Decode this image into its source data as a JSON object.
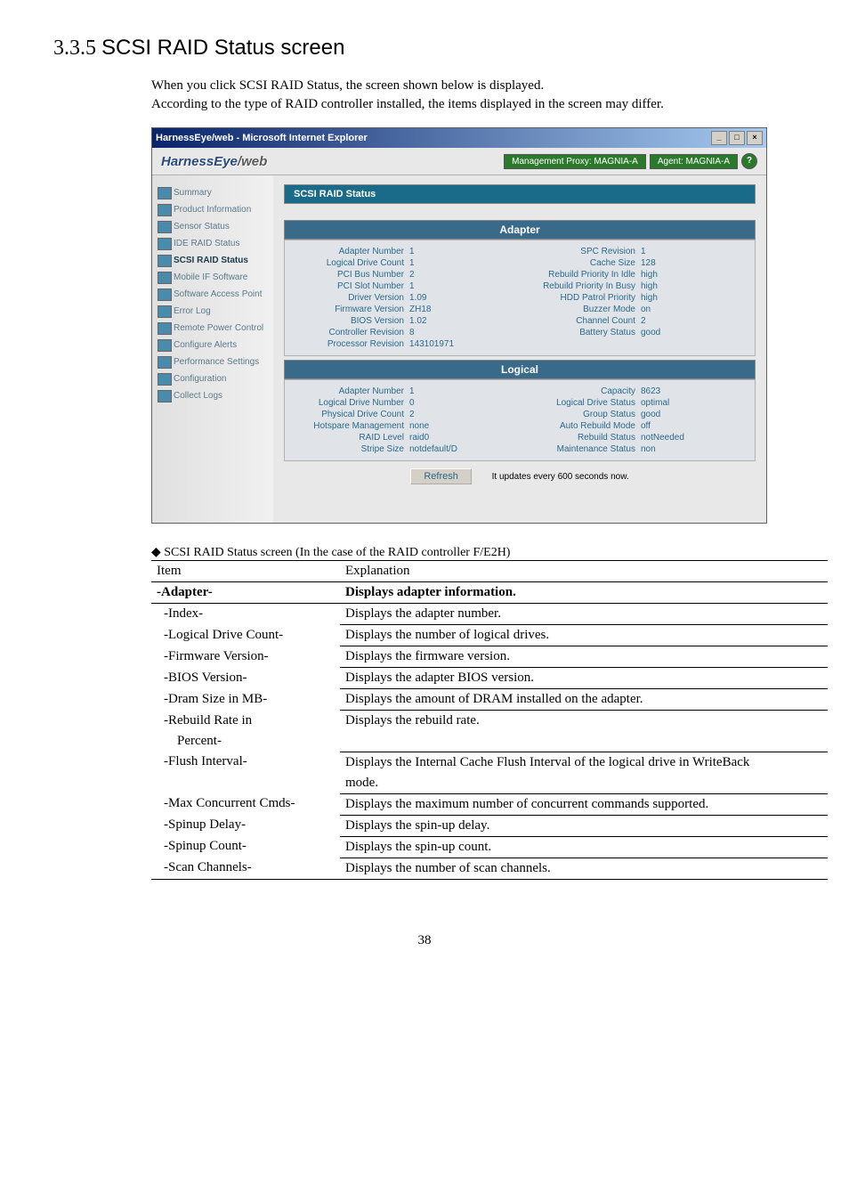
{
  "heading": {
    "num": "3.3.5",
    "title": "SCSI RAID Status screen"
  },
  "intro": [
    "When you click SCSI RAID Status, the screen shown below is displayed.",
    "According to the type of RAID controller installed, the items displayed in the screen may differ."
  ],
  "window": {
    "title": "HarnessEye/web - Microsoft Internet Explorer",
    "logo_a": "HarnessEye",
    "logo_b": "/web",
    "logo_color_a": "#2a4a7a",
    "logo_color_b": "#5a5a5a",
    "proxy_label": "Management Proxy: MAGNIA-A",
    "agent_label": "Agent: MAGNIA-A",
    "help": "?"
  },
  "sidebar": [
    {
      "label": "Summary"
    },
    {
      "label": "Product Information"
    },
    {
      "label": "Sensor Status"
    },
    {
      "label": "IDE RAID Status"
    },
    {
      "label": "SCSI RAID Status",
      "active": true
    },
    {
      "label": "Mobile IF Software"
    },
    {
      "label": "Software Access Point"
    },
    {
      "label": "Error Log"
    },
    {
      "label": "Remote Power Control"
    },
    {
      "label": "Configure Alerts"
    },
    {
      "label": "Performance Settings"
    },
    {
      "label": "Configuration"
    },
    {
      "label": "Collect Logs"
    }
  ],
  "status_title": "SCSI RAID Status",
  "adapter": {
    "header": "Adapter",
    "left": [
      {
        "k": "Adapter Number",
        "v": "1"
      },
      {
        "k": "Logical Drive Count",
        "v": "1"
      },
      {
        "k": "PCI Bus Number",
        "v": "2"
      },
      {
        "k": "PCI Slot Number",
        "v": "1"
      },
      {
        "k": "Driver Version",
        "v": "1.09"
      },
      {
        "k": "Firmware Version",
        "v": "ZH18"
      },
      {
        "k": "BIOS Version",
        "v": "1.02"
      },
      {
        "k": "Controller Revision",
        "v": "8"
      },
      {
        "k": "Processor Revision",
        "v": "143101971"
      }
    ],
    "right": [
      {
        "k": "SPC Revision",
        "v": "1"
      },
      {
        "k": "Cache Size",
        "v": "128"
      },
      {
        "k": "Rebuild Priority In Idle",
        "v": "high"
      },
      {
        "k": "Rebuild Priority In Busy",
        "v": "high"
      },
      {
        "k": "HDD Patrol Priority",
        "v": "high"
      },
      {
        "k": "Buzzer Mode",
        "v": "on"
      },
      {
        "k": "Channel Count",
        "v": "2"
      },
      {
        "k": "Battery Status",
        "v": "good"
      }
    ]
  },
  "logical": {
    "header": "Logical",
    "left": [
      {
        "k": "Adapter Number",
        "v": "1"
      },
      {
        "k": "Logical Drive Number",
        "v": "0"
      },
      {
        "k": "Physical Drive Count",
        "v": "2"
      },
      {
        "k": "Hotspare Management",
        "v": "none"
      },
      {
        "k": "RAID Level",
        "v": "raid0"
      },
      {
        "k": "Stripe Size",
        "v": "notdefault/D"
      }
    ],
    "right": [
      {
        "k": "Capacity",
        "v": "8623"
      },
      {
        "k": "Logical Drive Status",
        "v": "optimal"
      },
      {
        "k": "Group Status",
        "v": "good"
      },
      {
        "k": "Auto Rebuild Mode",
        "v": "off"
      },
      {
        "k": "Rebuild Status",
        "v": "notNeeded"
      },
      {
        "k": "Maintenance Status",
        "v": "non"
      }
    ]
  },
  "refresh": {
    "btn": "Refresh",
    "note": "It updates every 600 seconds now."
  },
  "caption": "◆ SCSI RAID Status screen (In the case of the RAID controller F/E2H)",
  "thead": {
    "c1": "Item",
    "c2": "Explanation"
  },
  "grp": {
    "c1": "-Adapter-",
    "c2": "Displays adapter information."
  },
  "rows": [
    {
      "i": "-Index-",
      "e": "Displays the adapter number."
    },
    {
      "i": "-Logical Drive Count-",
      "e": "Displays the number of logical drives."
    },
    {
      "i": "-Firmware Version-",
      "e": "Displays the firmware version."
    },
    {
      "i": "-BIOS Version-",
      "e": "Displays the adapter BIOS version."
    },
    {
      "i": "-Dram Size in MB-",
      "e": "Displays the amount of DRAM installed on the adapter."
    },
    {
      "i": "-Rebuild Rate in",
      "e": "Displays the rebuild rate.",
      "noline": true
    },
    {
      "i": "  Percent-",
      "e": ""
    },
    {
      "i": "-Flush Interval-",
      "e": "Displays the Internal Cache Flush Interval of the logical drive in WriteBack",
      "noline": true
    },
    {
      "i": "",
      "e": "mode."
    },
    {
      "i": "-Max Concurrent Cmds-",
      "e": "Displays the maximum number of concurrent commands supported."
    },
    {
      "i": "-Spinup Delay-",
      "e": "Displays the spin-up delay."
    },
    {
      "i": "-Spinup Count-",
      "e": "Displays the spin-up count."
    },
    {
      "i": "-Scan Channels-",
      "e": "Displays the number of scan channels.",
      "last": true
    }
  ],
  "pagenum": "38",
  "colors": {
    "titlebar_a": "#0a246a",
    "titlebar_b": "#a6caf0",
    "sidebar_text": "#5a7a8a",
    "sidebar_active": "#1a3a4a",
    "cat_bg": "#3a6a8a",
    "status_bg": "#1a6a8a",
    "kv_text": "#2a6a8a"
  }
}
